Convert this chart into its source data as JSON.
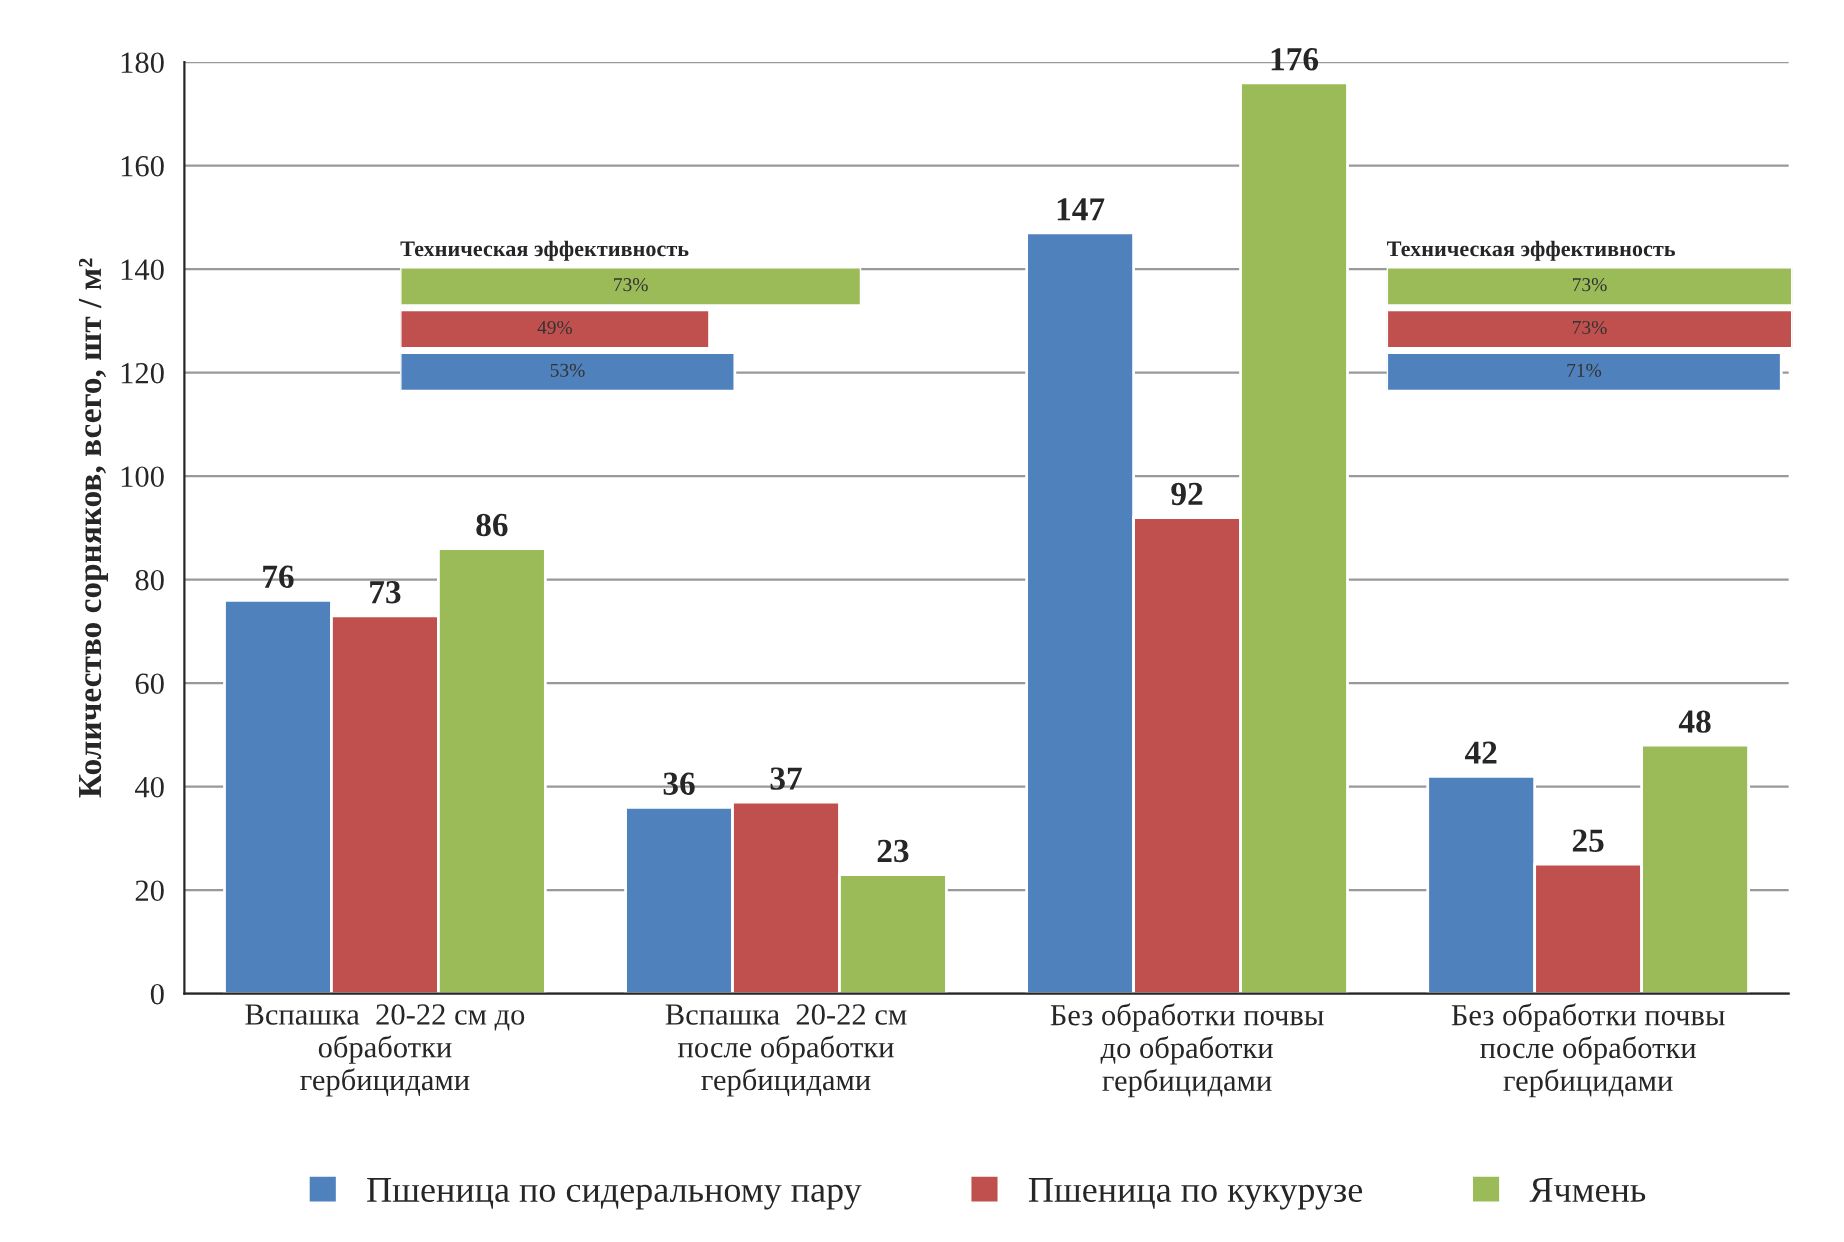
{
  "chart_data": [
    {
      "type": "bar",
      "ylabel": "Количество сорняков, всего, шт / м²",
      "categories": [
        "Вспашка  20-22 см до\nобработки\nгербицидами",
        "Вспашка  20-22 см\nпосле обработки\nгербицидами",
        "Без обработки почвы\nдо обработки\nгербицидами",
        "Без обработки почвы\nпосле обработки\nгербицидами"
      ],
      "series": [
        {
          "name": "Пшеница по сидеральному пару",
          "color": "#4f81bd",
          "values": [
            76,
            36,
            147,
            42
          ]
        },
        {
          "name": "Пшеница по кукурузе",
          "color": "#c0504d",
          "values": [
            73,
            37,
            92,
            25
          ]
        },
        {
          "name": "Ячмень",
          "color": "#9bbb59",
          "values": [
            86,
            23,
            176,
            48
          ]
        }
      ],
      "ylim": [
        0,
        180
      ],
      "yticks": [
        0,
        20,
        40,
        60,
        80,
        100,
        120,
        140,
        160,
        180
      ],
      "grid": "y",
      "legend": "bottom",
      "data_labels": true
    },
    {
      "type": "bar",
      "orientation": "horizontal",
      "title": "Техническая эффективность",
      "categories": [
        null,
        null,
        null
      ],
      "values": [
        73,
        49,
        53
      ],
      "colors": [
        "#9bbb59",
        "#c0504d",
        "#4f81bd"
      ],
      "value_labels": [
        "73%",
        "49%",
        "53%"
      ]
    },
    {
      "type": "bar",
      "orientation": "horizontal",
      "title": "Техническая эффективность",
      "categories": [
        null,
        null,
        null
      ],
      "values": [
        73,
        73,
        71
      ],
      "colors": [
        "#9bbb59",
        "#c0504d",
        "#4f81bd"
      ],
      "value_labels": [
        "73%",
        "73%",
        "71%"
      ]
    }
  ]
}
